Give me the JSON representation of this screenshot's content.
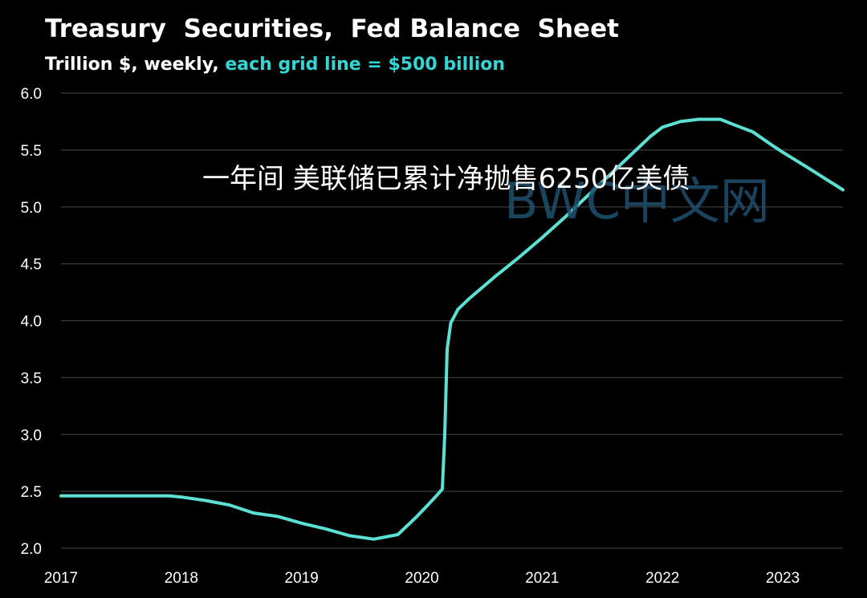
{
  "colors": {
    "background": "#000000",
    "line": "#5ce0d3",
    "grid": "#3a3a3a",
    "text": "#ffffff",
    "subtitle_highlight": "#33d6d6",
    "watermark": "#1f4f6e"
  },
  "chart_data": {
    "type": "line",
    "title": "Treasury  Securities,  Fed Balance  Sheet",
    "subtitle_prefix": "Trillion $, weekly, ",
    "subtitle_highlight": "each grid line = $500 billion",
    "xlabel": "",
    "ylabel": "",
    "xlim": [
      2017.0,
      2023.5
    ],
    "ylim": [
      2.0,
      6.0
    ],
    "grid": true,
    "x_ticks": [
      "2017",
      "2018",
      "2019",
      "2020",
      "2021",
      "2022",
      "2023"
    ],
    "y_ticks": [
      "6.0",
      "5.5",
      "5.0",
      "4.5",
      "4.0",
      "3.5",
      "3.0",
      "2.5",
      "2.0"
    ],
    "series": [
      {
        "name": "Treasury Securities",
        "x": [
          2017.0,
          2017.5,
          2017.9,
          2018.0,
          2018.2,
          2018.4,
          2018.6,
          2018.8,
          2019.0,
          2019.2,
          2019.4,
          2019.6,
          2019.8,
          2019.95,
          2020.05,
          2020.12,
          2020.17,
          2020.19,
          2020.21,
          2020.24,
          2020.3,
          2020.4,
          2020.6,
          2020.8,
          2021.0,
          2021.2,
          2021.4,
          2021.6,
          2021.8,
          2021.9,
          2022.0,
          2022.15,
          2022.3,
          2022.48,
          2022.6,
          2022.75,
          2022.9,
          2023.0,
          2023.2,
          2023.35,
          2023.5
        ],
        "values": [
          2.46,
          2.46,
          2.46,
          2.45,
          2.42,
          2.38,
          2.31,
          2.28,
          2.22,
          2.17,
          2.11,
          2.08,
          2.12,
          2.27,
          2.38,
          2.46,
          2.52,
          3.0,
          3.75,
          3.98,
          4.1,
          4.2,
          4.38,
          4.55,
          4.73,
          4.92,
          5.12,
          5.32,
          5.52,
          5.62,
          5.7,
          5.75,
          5.77,
          5.77,
          5.72,
          5.66,
          5.55,
          5.48,
          5.35,
          5.25,
          5.15
        ]
      }
    ]
  },
  "overlay": {
    "caption": "一年间 美联储已累计净抛售6250亿美债",
    "watermark": "BWC中文网"
  }
}
